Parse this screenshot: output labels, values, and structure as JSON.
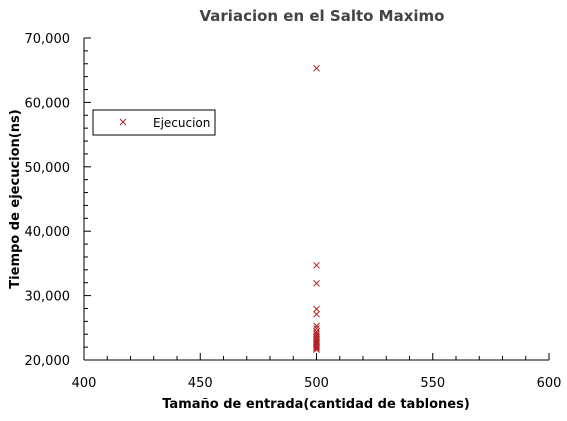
{
  "chart_data": {
    "type": "scatter",
    "title": "Variacion en el Salto Maximo",
    "xlabel": "Tamaño de entrada(cantidad de tablones)",
    "ylabel": "Tiempo de ejecucion(ns)",
    "xlim": [
      400,
      600
    ],
    "ylim": [
      20000,
      70000
    ],
    "x_ticks": [
      "400",
      "450",
      "500",
      "550",
      "600"
    ],
    "y_ticks": [
      "20,000",
      "30,000",
      "40,000",
      "50,000",
      "60,000",
      "70,000"
    ],
    "grid": false,
    "legend_position": "left",
    "series": [
      {
        "name": "Ejecucion",
        "color": "#b22222",
        "marker": "x",
        "points": [
          [
            500,
            65300
          ],
          [
            500,
            34700
          ],
          [
            500,
            31900
          ],
          [
            500,
            27900
          ],
          [
            500,
            27100
          ],
          [
            500,
            25300
          ],
          [
            500,
            24900
          ],
          [
            500,
            24400
          ],
          [
            500,
            24100
          ],
          [
            500,
            23800
          ],
          [
            500,
            23500
          ],
          [
            500,
            23200
          ],
          [
            500,
            23000
          ],
          [
            500,
            22800
          ],
          [
            500,
            22600
          ],
          [
            500,
            22400
          ],
          [
            500,
            22200
          ],
          [
            500,
            22000
          ],
          [
            500,
            21800
          ],
          [
            500,
            21600
          ]
        ]
      }
    ]
  }
}
